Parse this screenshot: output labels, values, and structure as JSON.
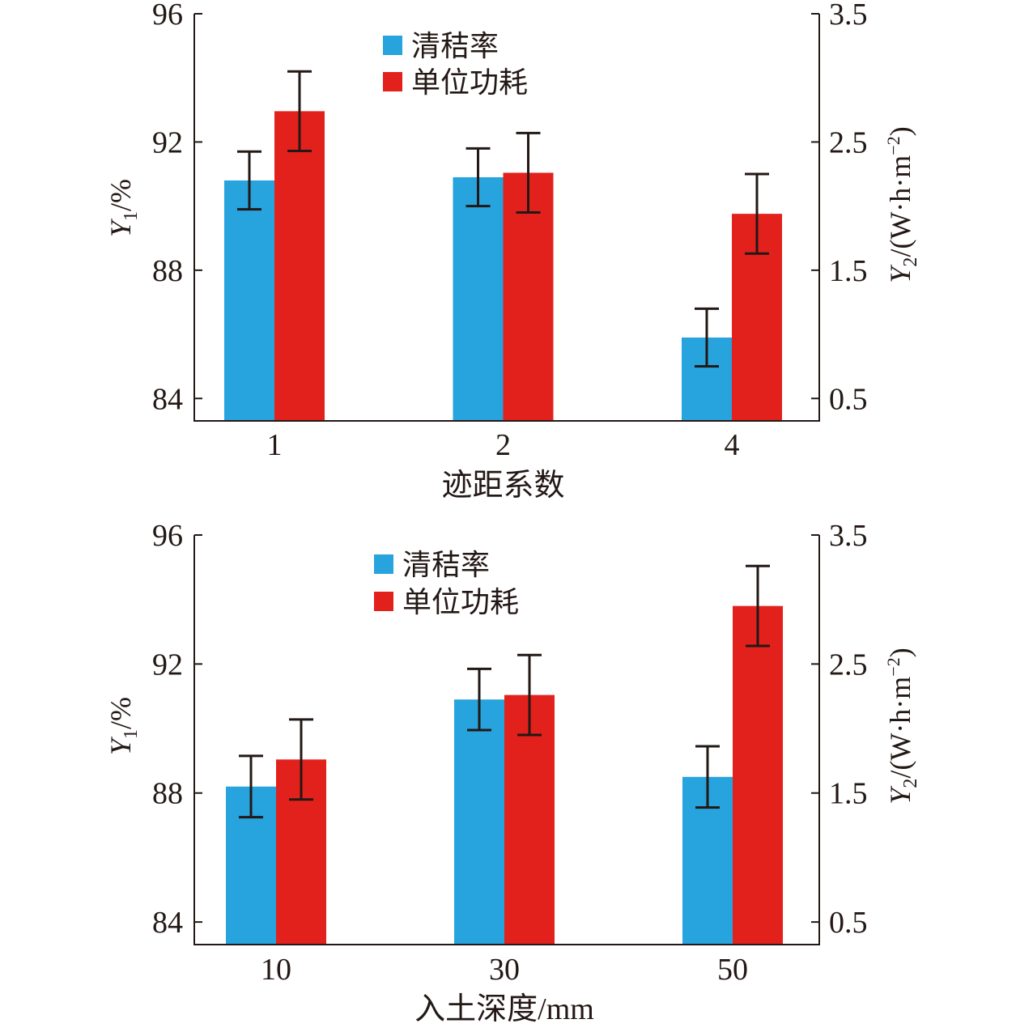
{
  "colors": {
    "axis": "#231815",
    "background": "#FFFFFF",
    "series_blue": "#27A3DD",
    "series_red": "#E3211C"
  },
  "chart_data": [
    {
      "type": "bar",
      "categories": [
        "1",
        "2",
        "4"
      ],
      "xlabel": "迹距系数",
      "ylabel_left": {
        "var": "Y",
        "sub": "1",
        "rest": "/%"
      },
      "ylabel_right": {
        "var": "Y",
        "sub": "2",
        "rest": "/(W·h·m",
        "sup": "−2",
        "end": ")"
      },
      "ylim_left": [
        83.3,
        96
      ],
      "ylim_right": [
        0.325,
        3.5
      ],
      "yticks_left": [
        84,
        88,
        92,
        96
      ],
      "yticks_right": [
        0.5,
        1.5,
        2.5,
        3.5
      ],
      "grid": false,
      "legend": "top-center",
      "series": [
        {
          "name": "清秸率",
          "y_axis": "left",
          "color": "#27A3DD",
          "values": [
            90.8,
            90.9,
            85.9
          ],
          "errors": [
            0.9,
            0.9,
            0.9
          ]
        },
        {
          "name": "单位功耗",
          "y_axis": "right",
          "color": "#E3211C",
          "values": [
            2.74,
            2.26,
            1.94
          ],
          "errors": [
            0.31,
            0.31,
            0.31
          ]
        }
      ]
    },
    {
      "type": "bar",
      "categories": [
        "10",
        "30",
        "50"
      ],
      "xlabel": "入土深度/mm",
      "ylabel_left": {
        "var": "Y",
        "sub": "1",
        "rest": "/%"
      },
      "ylabel_right": {
        "var": "Y",
        "sub": "2",
        "rest": "/(W·h·m",
        "sup": "−2",
        "end": ")"
      },
      "ylim_left": [
        83.3,
        96
      ],
      "ylim_right": [
        0.325,
        3.5
      ],
      "yticks_left": [
        84,
        88,
        92,
        96
      ],
      "yticks_right": [
        0.5,
        1.5,
        2.5,
        3.5
      ],
      "grid": false,
      "legend": "top-center",
      "series": [
        {
          "name": "清秸率",
          "y_axis": "left",
          "color": "#27A3DD",
          "values": [
            88.2,
            90.9,
            88.5
          ],
          "errors": [
            0.95,
            0.95,
            0.95
          ]
        },
        {
          "name": "单位功耗",
          "y_axis": "right",
          "color": "#E3211C",
          "values": [
            1.76,
            2.26,
            2.95
          ],
          "errors": [
            0.31,
            0.31,
            0.31
          ]
        }
      ]
    }
  ]
}
